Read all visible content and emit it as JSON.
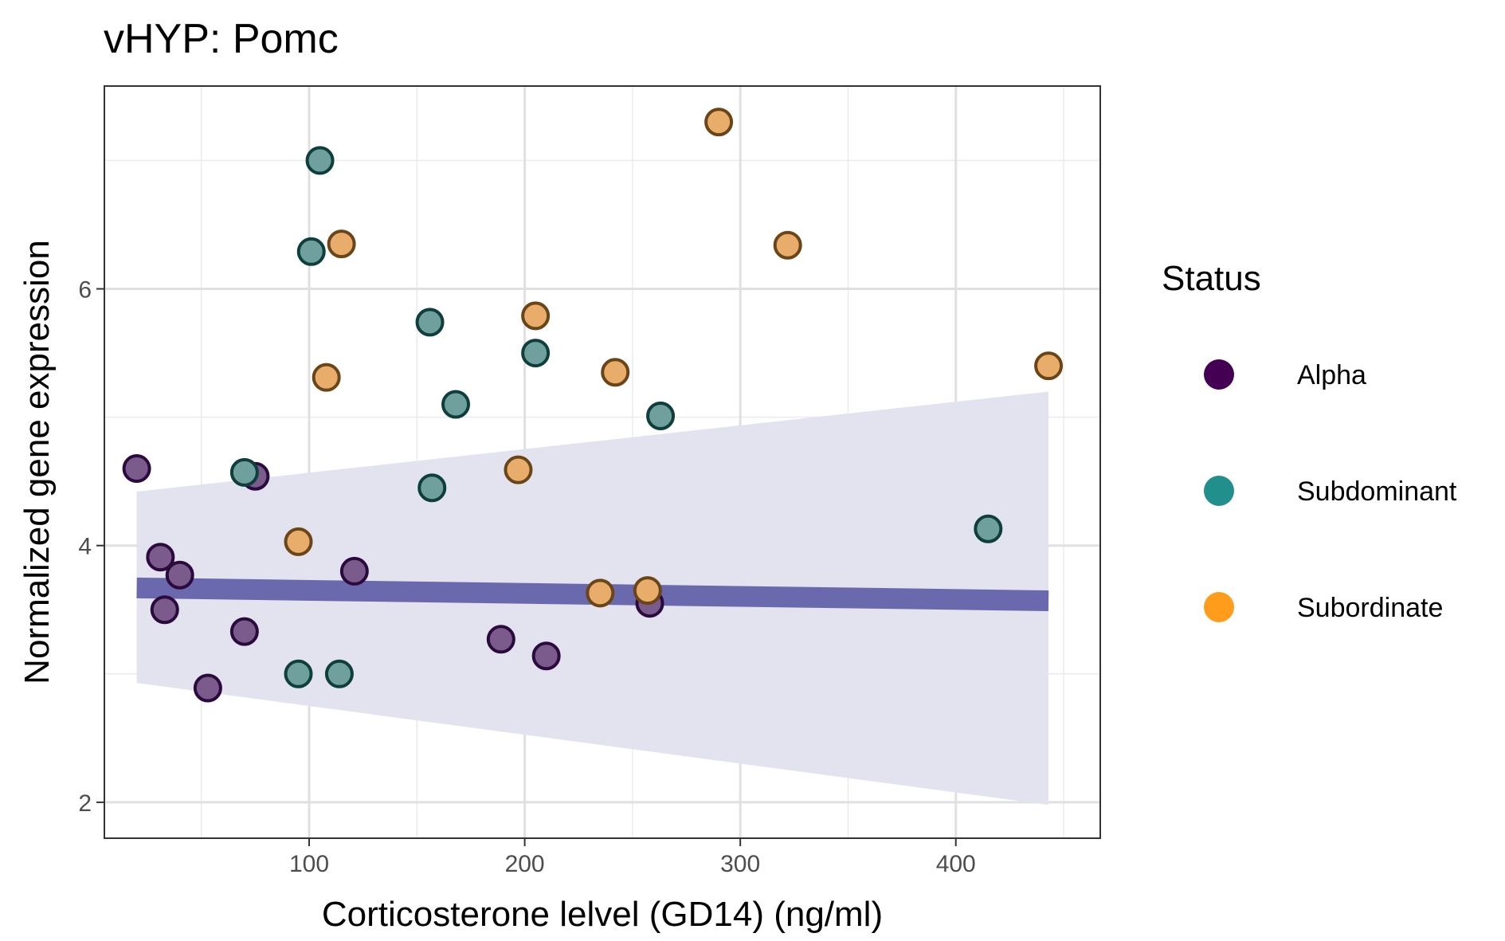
{
  "chart_data": {
    "type": "scatter",
    "title": "vHYP: Pomc",
    "xlabel": "Corticosterone lelvel (GD14) (ng/ml)",
    "ylabel": "Normalized gene expression",
    "xlim": [
      5,
      467
    ],
    "ylim": [
      1.72,
      7.58
    ],
    "x_ticks": [
      100,
      200,
      300,
      400
    ],
    "y_ticks": [
      2,
      4,
      6
    ],
    "grid": true,
    "legend": {
      "title": "Status",
      "position": "right",
      "entries": [
        {
          "name": "Alpha",
          "color": "#440154"
        },
        {
          "name": "Subdominant",
          "color": "#21908c"
        },
        {
          "name": "Subordinate",
          "color": "#ff9c1c"
        }
      ]
    },
    "series": [
      {
        "name": "Alpha",
        "fill": "#7b5a8c",
        "stroke": "#2b0a3d",
        "x": [
          20,
          31,
          33,
          40,
          53,
          70,
          75,
          121,
          189,
          210,
          258
        ],
        "y": [
          4.6,
          3.91,
          3.5,
          3.77,
          2.89,
          3.33,
          4.54,
          3.8,
          3.27,
          3.14,
          3.55
        ]
      },
      {
        "name": "Subdominant",
        "fill": "#6fa09e",
        "stroke": "#0f3f3d",
        "x": [
          70,
          95,
          101,
          105,
          114,
          156,
          157,
          168,
          205,
          263,
          415
        ],
        "y": [
          4.57,
          3.0,
          6.29,
          7.0,
          3.0,
          5.74,
          4.45,
          5.1,
          5.5,
          5.01,
          4.13
        ]
      },
      {
        "name": "Subordinate",
        "fill": "#e8ad6a",
        "stroke": "#6a4518",
        "x": [
          95,
          108,
          115,
          197,
          205,
          235,
          242,
          257,
          290,
          322,
          443
        ],
        "y": [
          4.03,
          5.31,
          6.35,
          4.59,
          5.79,
          3.63,
          5.35,
          3.65,
          7.3,
          6.34,
          5.4
        ]
      }
    ],
    "trend": {
      "color": "#6b69ad",
      "x": [
        20,
        443
      ],
      "y": [
        3.67,
        3.57
      ],
      "ci_color": "#e3e2ef",
      "ci_upper": [
        4.42,
        5.2
      ],
      "ci_lower": [
        2.93,
        1.98
      ]
    }
  }
}
